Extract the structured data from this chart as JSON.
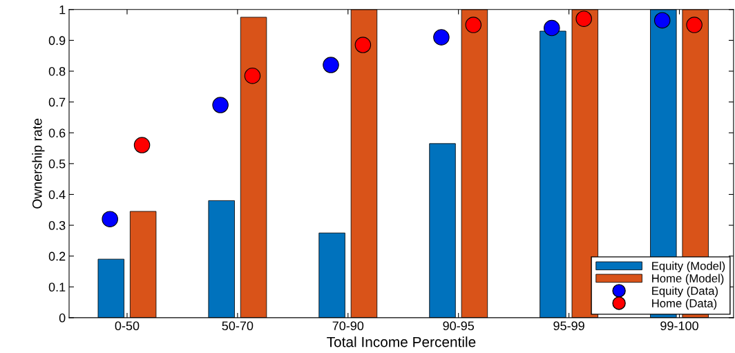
{
  "chart_data": {
    "type": "bar",
    "xlabel": "Total Income Percentile",
    "ylabel": "Ownership rate",
    "categories": [
      "0-50",
      "50-70",
      "70-90",
      "90-95",
      "95-99",
      "99-100"
    ],
    "series": [
      {
        "name": "Equity (Model)",
        "color": "#0072bd",
        "values": [
          0.19,
          0.38,
          0.275,
          0.565,
          0.93,
          1.0
        ]
      },
      {
        "name": "Home (Model)",
        "color": "#d95319",
        "values": [
          0.345,
          0.975,
          1.0,
          1.0,
          1.0,
          1.0
        ]
      },
      {
        "name": "Equity (Data)",
        "type": "scatter",
        "color": "#0000ff",
        "marker": "circle",
        "values": [
          0.32,
          0.69,
          0.82,
          0.91,
          0.94,
          0.965
        ]
      },
      {
        "name": "Home (Data)",
        "type": "scatter",
        "color": "#ff0000",
        "marker": "circle",
        "values": [
          0.56,
          0.785,
          0.885,
          0.95,
          0.97,
          0.95
        ]
      }
    ],
    "ylim": [
      0,
      1
    ],
    "yticks": [
      0,
      0.1,
      0.2,
      0.3,
      0.4,
      0.5,
      0.6,
      0.7,
      0.8,
      0.9,
      1
    ],
    "grid": false,
    "legend": "bottom right"
  }
}
